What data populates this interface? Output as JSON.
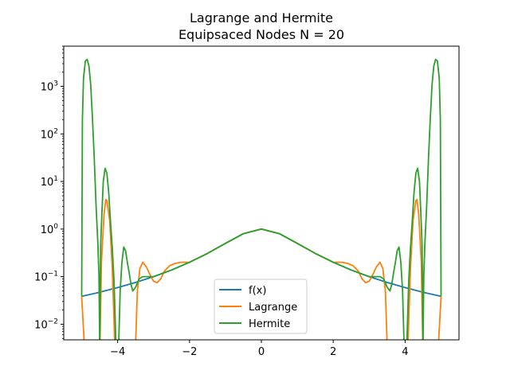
{
  "chart_data": {
    "type": "line",
    "title": "Lagrange and Hermite",
    "subtitle": "Equipsaced Nodes N = 20",
    "xlabel": "",
    "ylabel": "",
    "xlim": [
      -5.5,
      5.5
    ],
    "ylim": [
      0.0047,
      7000
    ],
    "yscale": "log",
    "grid": false,
    "legend_position": "lower center",
    "x_ticks": [
      {
        "value": -4,
        "label": "−4"
      },
      {
        "value": -2,
        "label": "−2"
      },
      {
        "value": 0,
        "label": "0"
      },
      {
        "value": 2,
        "label": "2"
      },
      {
        "value": 4,
        "label": "4"
      }
    ],
    "y_ticks": [
      {
        "value": 0.01,
        "base": "10",
        "exp": "−2"
      },
      {
        "value": 0.1,
        "base": "10",
        "exp": "−1"
      },
      {
        "value": 1,
        "base": "10",
        "exp": "0"
      },
      {
        "value": 10,
        "base": "10",
        "exp": "1"
      },
      {
        "value": 100,
        "base": "10",
        "exp": "2"
      },
      {
        "value": 1000,
        "base": "10",
        "exp": "3"
      }
    ],
    "series": [
      {
        "name": "f(x)",
        "color": "#1f77b4",
        "x": [
          -5,
          -4.5,
          -4,
          -3.5,
          -3,
          -2.5,
          -2,
          -1.5,
          -1,
          -0.5,
          0,
          0.5,
          1,
          1.5,
          2,
          2.5,
          3,
          3.5,
          4,
          4.5,
          5
        ],
        "y": [
          0.0385,
          0.047,
          0.0588,
          0.0755,
          0.1,
          0.138,
          0.2,
          0.308,
          0.5,
          0.8,
          1.0,
          0.8,
          0.5,
          0.308,
          0.2,
          0.138,
          0.1,
          0.0755,
          0.0588,
          0.047,
          0.0385
        ]
      },
      {
        "name": "Lagrange",
        "color": "#ff7f0e",
        "x": [
          -5.0,
          -4.93,
          -4.87,
          -4.8,
          -4.72,
          -4.64,
          -4.55,
          -4.49,
          -4.45,
          -4.38,
          -4.33,
          -4.3,
          -4.22,
          -4.15,
          -4.08,
          -4.03,
          -4.0,
          -3.95,
          -3.85,
          -3.75,
          -3.62,
          -3.53,
          -3.5,
          -3.45,
          -3.38,
          -3.3,
          -3.2,
          -3.1,
          -3.0,
          -2.9,
          -2.8,
          -2.7,
          -2.55,
          -2.4,
          -2.25,
          -2.0,
          -1.5,
          -1.0,
          -0.5,
          0.0,
          0.5,
          1.0,
          1.5,
          2.0,
          2.25,
          2.4,
          2.55,
          2.7,
          2.8,
          2.9,
          3.0,
          3.1,
          3.2,
          3.3,
          3.38,
          3.45,
          3.5,
          3.53,
          3.62,
          3.75,
          3.85,
          3.95,
          4.0,
          4.03,
          4.08,
          4.15,
          4.22,
          4.3,
          4.33,
          4.38,
          4.45,
          4.49,
          4.55,
          4.64,
          4.72,
          4.8,
          4.87,
          4.93,
          5.0
        ],
        "y": [
          0.0385,
          0.004,
          0.004,
          0.004,
          0.004,
          0.004,
          0.004,
          0.004,
          0.2,
          2.0,
          4.2,
          4.0,
          1.5,
          0.15,
          0.004,
          0.004,
          0.004,
          0.004,
          0.004,
          0.004,
          0.004,
          0.004,
          0.004,
          0.05,
          0.15,
          0.2,
          0.16,
          0.11,
          0.08,
          0.075,
          0.09,
          0.13,
          0.17,
          0.19,
          0.2,
          0.2,
          0.308,
          0.5,
          0.8,
          1.0,
          0.8,
          0.5,
          0.308,
          0.2,
          0.2,
          0.19,
          0.17,
          0.13,
          0.09,
          0.075,
          0.08,
          0.11,
          0.16,
          0.2,
          0.15,
          0.05,
          0.004,
          0.004,
          0.004,
          0.004,
          0.004,
          0.004,
          0.004,
          0.004,
          0.004,
          0.15,
          1.5,
          4.0,
          4.2,
          2.0,
          0.2,
          0.004,
          0.004,
          0.004,
          0.004,
          0.004,
          0.004,
          0.004,
          0.0385
        ]
      },
      {
        "name": "Hermite",
        "color": "#2ca02c",
        "x": [
          -5.0,
          -4.98,
          -4.95,
          -4.9,
          -4.85,
          -4.8,
          -4.75,
          -4.7,
          -4.65,
          -4.6,
          -4.55,
          -4.52,
          -4.5,
          -4.47,
          -4.44,
          -4.4,
          -4.35,
          -4.3,
          -4.25,
          -4.2,
          -4.15,
          -4.1,
          -4.05,
          -4.0,
          -3.97,
          -3.93,
          -3.88,
          -3.83,
          -3.78,
          -3.73,
          -3.68,
          -3.63,
          -3.58,
          -3.5,
          -3.4,
          -3.3,
          -3.0,
          -2.5,
          -2.0,
          -1.5,
          -1.0,
          -0.5,
          0.0,
          0.5,
          1.0,
          1.5,
          2.0,
          2.5,
          3.0,
          3.3,
          3.4,
          3.5,
          3.58,
          3.63,
          3.68,
          3.73,
          3.78,
          3.83,
          3.88,
          3.93,
          3.97,
          4.0,
          4.05,
          4.1,
          4.15,
          4.2,
          4.25,
          4.3,
          4.35,
          4.4,
          4.44,
          4.47,
          4.5,
          4.52,
          4.55,
          4.6,
          4.65,
          4.7,
          4.75,
          4.8,
          4.85,
          4.9,
          4.95,
          4.98,
          5.0
        ],
        "y": [
          0.0385,
          200,
          1500,
          3400,
          3700,
          2700,
          1100,
          200,
          30,
          3,
          0.5,
          0.1,
          0.004,
          0.5,
          2,
          10,
          19,
          15,
          6,
          1.5,
          0.4,
          0.08,
          0.004,
          0.004,
          0.004,
          0.05,
          0.2,
          0.42,
          0.35,
          0.2,
          0.12,
          0.07,
          0.05,
          0.06,
          0.09,
          0.1,
          0.1,
          0.138,
          0.2,
          0.308,
          0.5,
          0.8,
          1.0,
          0.8,
          0.5,
          0.308,
          0.2,
          0.138,
          0.1,
          0.1,
          0.09,
          0.06,
          0.05,
          0.07,
          0.12,
          0.2,
          0.35,
          0.42,
          0.2,
          0.05,
          0.004,
          0.004,
          0.004,
          0.08,
          0.4,
          1.5,
          6,
          15,
          19,
          10,
          2,
          0.5,
          0.004,
          0.1,
          0.5,
          3,
          30,
          200,
          1100,
          2700,
          3700,
          3400,
          1500,
          200,
          0.0385
        ]
      }
    ]
  }
}
